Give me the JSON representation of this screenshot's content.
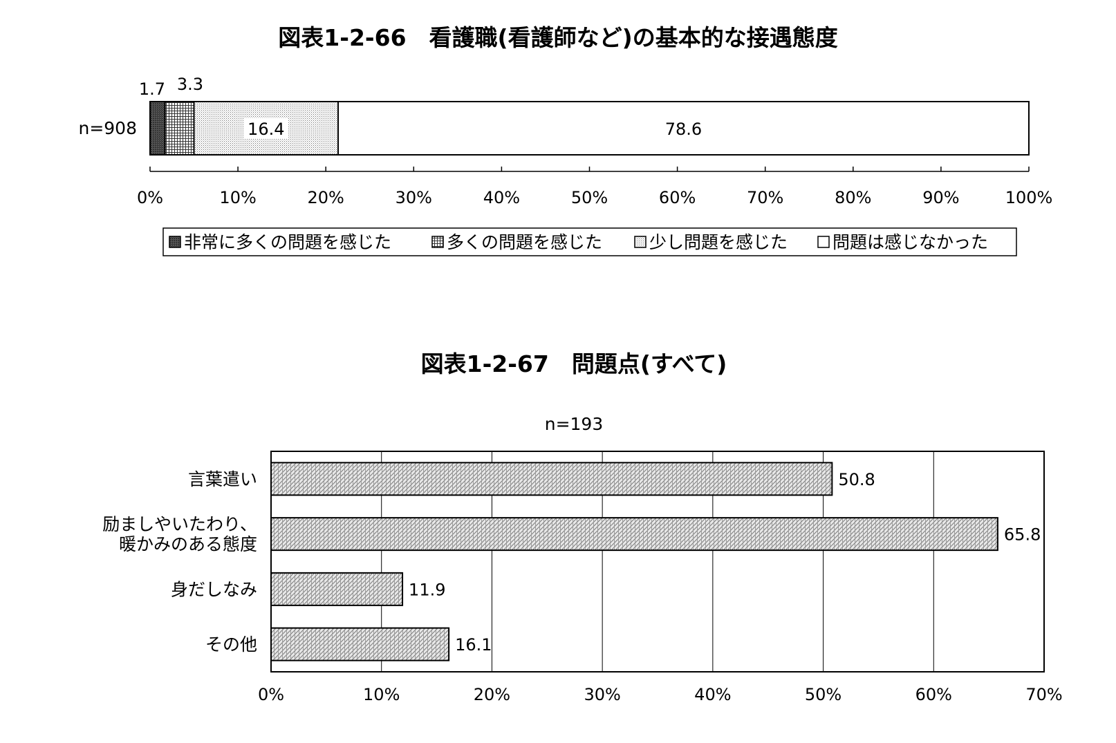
{
  "chart_data": [
    {
      "type": "bar",
      "orientation": "horizontal",
      "stacked": true,
      "title": "図表1-2-66　看護職(看護師など)の基本的な接遇態度",
      "categories": [
        "n=908"
      ],
      "series": [
        {
          "name": "非常に多くの問題を感じた",
          "values": [
            1.7
          ],
          "label": "1.7"
        },
        {
          "name": "多くの問題を感じた",
          "values": [
            3.3
          ],
          "label": "3.3"
        },
        {
          "name": "少し問題を感じた",
          "values": [
            16.4
          ],
          "label": "16.4"
        },
        {
          "name": "問題は感じなかった",
          "values": [
            78.6
          ],
          "label": "78.6"
        }
      ],
      "xlim": [
        0,
        100
      ],
      "xticks": [
        "0%",
        "10%",
        "20%",
        "30%",
        "40%",
        "50%",
        "60%",
        "70%",
        "80%",
        "90%",
        "100%"
      ],
      "legend": "bottom",
      "grid": false
    },
    {
      "type": "bar",
      "orientation": "horizontal",
      "title": "図表1-2-67　問題点(すべて)",
      "subtitle": "n=193",
      "categories": [
        [
          "言葉遣い"
        ],
        [
          "励ましやいたわり、",
          "暖かみのある態度"
        ],
        [
          "身だしなみ"
        ],
        [
          "その他"
        ]
      ],
      "values": [
        50.8,
        65.8,
        11.9,
        16.1
      ],
      "labels": [
        "50.8",
        "65.8",
        "11.9",
        "16.1"
      ],
      "xlim": [
        0,
        70
      ],
      "xticks": [
        "0%",
        "10%",
        "20%",
        "30%",
        "40%",
        "50%",
        "60%",
        "70%"
      ],
      "grid": true
    }
  ]
}
